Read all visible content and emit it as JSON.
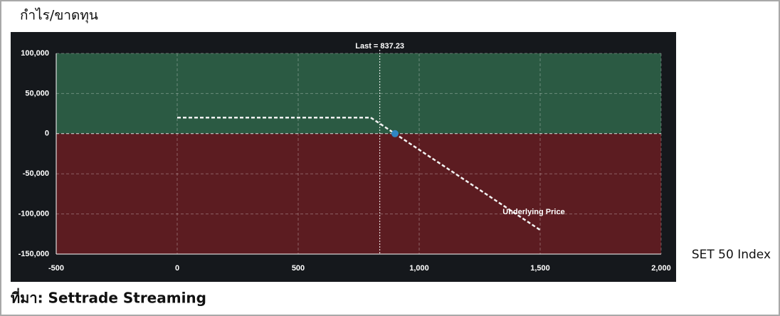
{
  "title": "กำไร/ขาดทุน",
  "source": "ที่มา: Settrade Streaming",
  "chart_data": {
    "type": "line",
    "xlabel": "SET 50 Index",
    "x": [
      0,
      800,
      1500
    ],
    "series": [
      {
        "color": "#f2f2f2",
        "values": [
          20000,
          20000,
          -120000
        ]
      }
    ],
    "markers": {
      "x": [
        900
      ],
      "values": [
        0
      ],
      "color": "#2f86c4"
    },
    "last": {
      "value": 837.23,
      "label": "Last = 837.23"
    },
    "annotation": "Underlying Price",
    "xlim": [
      -500,
      2000
    ],
    "xticks": [
      -500,
      0,
      500,
      {
        "value": 1000,
        "label": "1,000"
      },
      {
        "value": 1500,
        "label": "1,500"
      },
      {
        "value": 2000,
        "label": "2,000"
      }
    ],
    "ylim": [
      -150000,
      100000
    ],
    "yticks": [
      {
        "value": 100000,
        "label": "100,000"
      },
      {
        "value": 50000,
        "label": "50,000"
      },
      0,
      {
        "value": -50000,
        "label": "-50,000"
      },
      {
        "value": -100000,
        "label": "-100,000"
      },
      {
        "value": -150000,
        "label": "-150,000"
      }
    ],
    "grid": true,
    "positive_color": "#2b5a43",
    "negative_color": "#5c1c21",
    "background": "#15181c"
  }
}
